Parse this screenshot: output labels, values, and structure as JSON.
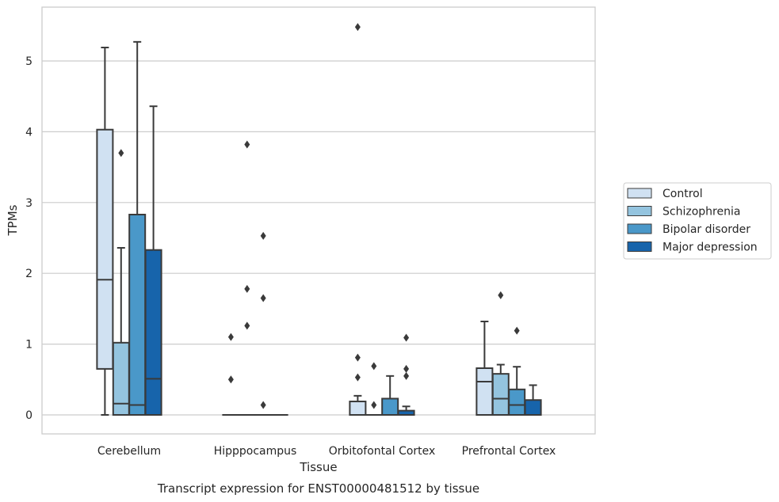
{
  "chart_data": {
    "type": "box",
    "xlabel": "Tissue",
    "ylabel": "TPMs",
    "caption": "Transcript expression for ENST00000481512 by tissue",
    "ylim": [
      -0.27,
      5.75
    ],
    "yticks": [
      0,
      1,
      2,
      3,
      4,
      5
    ],
    "grid": "horizontal",
    "legend_position": "right",
    "categories": [
      "Cerebellum",
      "Hipppocampus",
      "Orbitofontal Cortex",
      "Prefrontal Cortex"
    ],
    "series": [
      {
        "name": "Control",
        "color": "#d0e1f2",
        "boxes": [
          {
            "whislo": 0,
            "q1": 0.65,
            "med": 1.91,
            "q3": 4.03,
            "whishi": 5.19,
            "fliers": []
          },
          {
            "whislo": 0,
            "q1": 0,
            "med": 0,
            "q3": 0,
            "whishi": 0,
            "fliers": [
              0.5,
              1.1
            ]
          },
          {
            "whislo": 0,
            "q1": 0,
            "med": 0,
            "q3": 0.19,
            "whishi": 0.27,
            "fliers": [
              0.53,
              0.81,
              5.48
            ]
          },
          {
            "whislo": 0,
            "q1": 0,
            "med": 0.47,
            "q3": 0.66,
            "whishi": 1.32,
            "fliers": []
          }
        ]
      },
      {
        "name": "Schizophrenia",
        "color": "#94c4df",
        "boxes": [
          {
            "whislo": 0,
            "q1": 0,
            "med": 0.16,
            "q3": 1.02,
            "whishi": 2.36,
            "fliers": [
              3.7
            ]
          },
          {
            "whislo": 0,
            "q1": 0,
            "med": 0,
            "q3": 0,
            "whishi": 0,
            "fliers": [
              1.26,
              1.78,
              3.82
            ]
          },
          {
            "whislo": 0,
            "q1": 0,
            "med": 0,
            "q3": 0,
            "whishi": 0,
            "fliers": [
              0.14,
              0.69
            ]
          },
          {
            "whislo": 0,
            "q1": 0,
            "med": 0.23,
            "q3": 0.58,
            "whishi": 0.71,
            "fliers": [
              1.69
            ]
          }
        ]
      },
      {
        "name": "Bipolar disorder",
        "color": "#4a98c9",
        "boxes": [
          {
            "whislo": 0,
            "q1": 0,
            "med": 0.14,
            "q3": 2.83,
            "whishi": 5.27,
            "fliers": []
          },
          {
            "whislo": 0,
            "q1": 0,
            "med": 0,
            "q3": 0,
            "whishi": 0,
            "fliers": [
              0.14,
              1.65,
              2.53
            ]
          },
          {
            "whislo": 0,
            "q1": 0,
            "med": 0,
            "q3": 0.23,
            "whishi": 0.55,
            "fliers": []
          },
          {
            "whislo": 0,
            "q1": 0,
            "med": 0.14,
            "q3": 0.36,
            "whishi": 0.68,
            "fliers": [
              1.19
            ]
          }
        ]
      },
      {
        "name": "Major depression",
        "color": "#1764ab",
        "boxes": [
          {
            "whislo": 0,
            "q1": 0,
            "med": 0.51,
            "q3": 2.33,
            "whishi": 4.36,
            "fliers": []
          },
          {
            "whislo": 0,
            "q1": 0,
            "med": 0,
            "q3": 0,
            "whishi": 0,
            "fliers": []
          },
          {
            "whislo": 0,
            "q1": 0,
            "med": 0,
            "q3": 0.06,
            "whishi": 0.12,
            "fliers": [
              0.55,
              0.65,
              1.09
            ]
          },
          {
            "whislo": 0,
            "q1": 0,
            "med": 0,
            "q3": 0.21,
            "whishi": 0.42,
            "fliers": []
          }
        ]
      }
    ]
  }
}
